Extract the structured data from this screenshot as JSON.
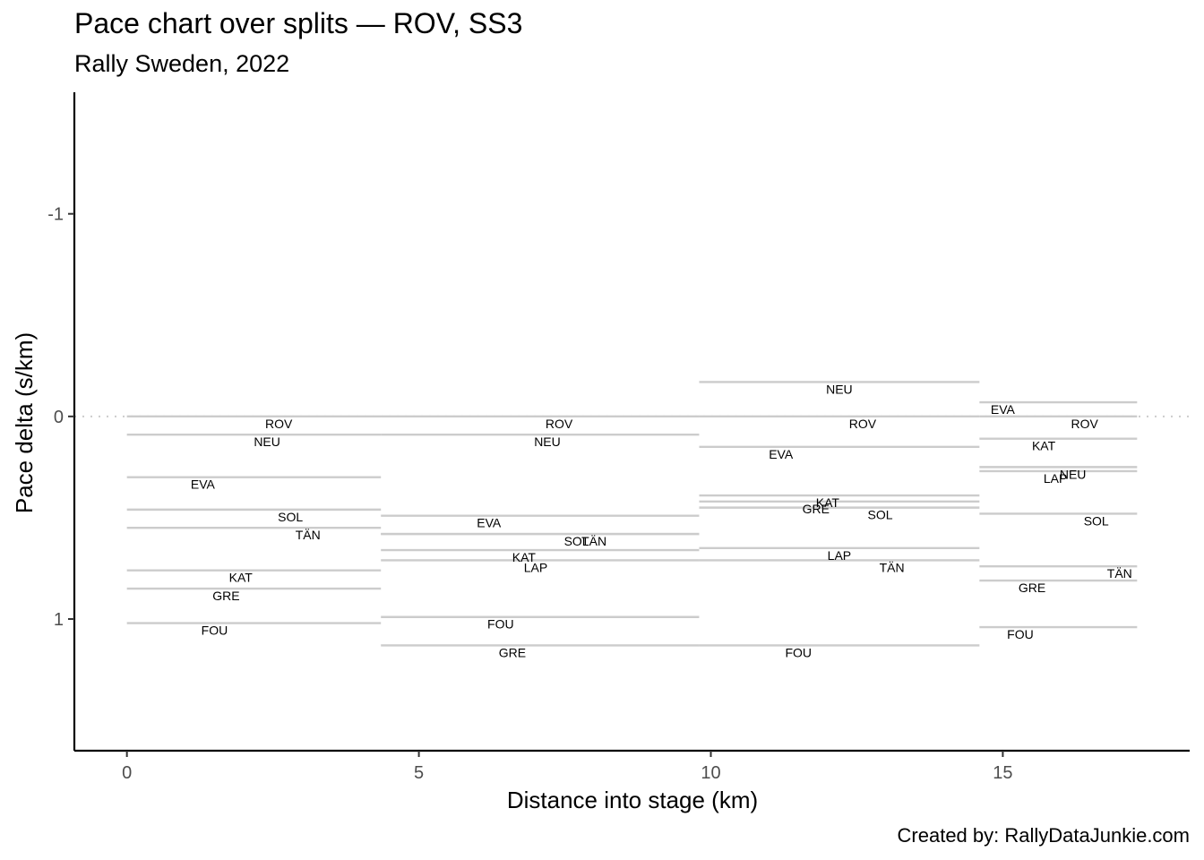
{
  "header": {
    "title": "Pace chart over splits — ROV, SS3",
    "subtitle": "Rally Sweden, 2022"
  },
  "footer": {
    "caption": "Created by: RallyDataJunkie.com"
  },
  "chart_data": {
    "type": "line",
    "title": "Pace chart over splits — ROV, SS3",
    "subtitle": "Rally Sweden, 2022",
    "xlabel": "Distance into stage (km)",
    "ylabel": "Pace delta (s/km)",
    "xlim": [
      -0.9,
      18.2
    ],
    "ylim": [
      -1.6,
      1.65
    ],
    "y_reversed": true,
    "x_ticks": [
      0,
      5,
      10,
      15
    ],
    "y_ticks": [
      -1,
      0,
      1
    ],
    "grid": false,
    "reference_line": {
      "y": 0,
      "style": "dotted"
    },
    "splits": [
      {
        "start_km": 0,
        "end_km": 4.35
      },
      {
        "start_km": 4.35,
        "end_km": 9.8
      },
      {
        "start_km": 9.8,
        "end_km": 14.6
      },
      {
        "start_km": 14.6,
        "end_km": 17.3
      }
    ],
    "series": [
      {
        "name": "ROV",
        "values": [
          0.0,
          0.0,
          0.0,
          0.0
        ],
        "label_x": [
          2.6,
          7.4,
          12.6,
          16.4
        ]
      },
      {
        "name": "NEU",
        "values": [
          0.09,
          0.09,
          -0.17,
          0.25
        ],
        "label_x": [
          2.4,
          7.2,
          12.2,
          16.2
        ]
      },
      {
        "name": "EVA",
        "values": [
          0.3,
          0.49,
          0.15,
          -0.07
        ],
        "label_x": [
          1.3,
          6.2,
          11.2,
          15.0
        ]
      },
      {
        "name": "SOL",
        "values": [
          0.46,
          0.58,
          0.45,
          0.48
        ],
        "label_x": [
          2.8,
          7.7,
          12.9,
          16.6
        ]
      },
      {
        "name": "TÄN",
        "values": [
          0.55,
          0.58,
          0.71,
          0.74
        ],
        "label_x": [
          3.1,
          8.0,
          13.1,
          17.0
        ]
      },
      {
        "name": "KAT",
        "values": [
          0.76,
          0.66,
          0.39,
          0.11
        ],
        "label_x": [
          1.95,
          6.8,
          12.0,
          15.7
        ]
      },
      {
        "name": "GRE",
        "values": [
          0.85,
          1.13,
          0.42,
          0.81
        ],
        "label_x": [
          1.7,
          6.6,
          11.8,
          15.5
        ]
      },
      {
        "name": "LAP",
        "values": [
          null,
          0.71,
          0.65,
          0.27
        ],
        "label_x": [
          null,
          7.0,
          12.2,
          15.9
        ]
      },
      {
        "name": "FOU",
        "values": [
          1.02,
          0.99,
          1.13,
          1.04
        ],
        "label_x": [
          1.5,
          6.4,
          11.5,
          15.3
        ]
      }
    ]
  }
}
